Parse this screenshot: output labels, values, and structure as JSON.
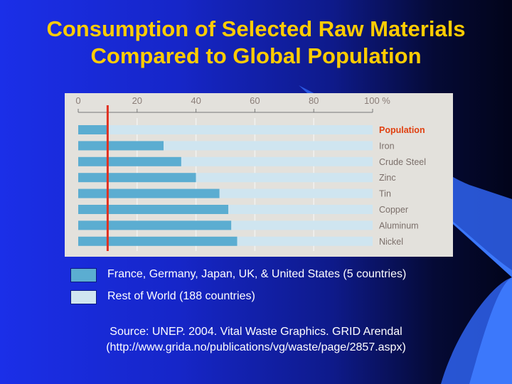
{
  "slide": {
    "title_line1": "Consumption of Selected Raw Materials",
    "title_line2": "Compared to Global Population",
    "source_line1": "Source: UNEP. 2004.  Vital Waste Graphics. GRID Arendal",
    "source_line2": "(http://www.grida.no/publications/vg/waste/page/2857.aspx)"
  },
  "colors": {
    "title": "#ffcc00",
    "five_countries": "#5badd1",
    "rest_of_world": "#cfe5f0",
    "population_marker": "#e03020",
    "population_label": "#e04010"
  },
  "legend": [
    {
      "label": "France, Germany, Japan, UK, & United States (5 countries)",
      "color": "#5badd1"
    },
    {
      "label": "Rest of World (188 countries)",
      "color": "#cfe5f0"
    }
  ],
  "chart_data": {
    "type": "bar",
    "orientation": "horizontal",
    "stacked": true,
    "xlim": [
      0,
      100
    ],
    "ticks": [
      "0",
      "20",
      "40",
      "60",
      "80",
      "100 %"
    ],
    "categories": [
      "Population",
      "Iron",
      "Crude Steel",
      "Zinc",
      "Tin",
      "Copper",
      "Aluminum",
      "Nickel"
    ],
    "series": [
      {
        "name": "France, Germany, Japan, UK, & United States (5 countries)",
        "values": [
          10,
          29,
          35,
          40,
          48,
          51,
          52,
          54
        ]
      },
      {
        "name": "Rest of World (188 countries)",
        "values": [
          90,
          71,
          65,
          60,
          52,
          49,
          48,
          46
        ]
      }
    ],
    "population_marker": 10,
    "grid": true
  }
}
